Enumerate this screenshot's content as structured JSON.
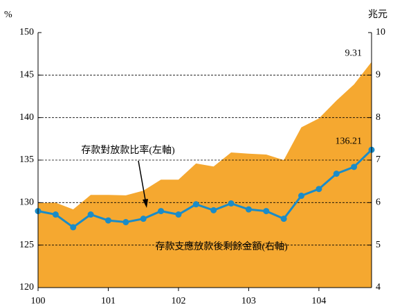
{
  "chart_data": {
    "type": "line",
    "y_label": "%",
    "y2_label": "兆元",
    "categories": [
      "100",
      null,
      null,
      null,
      "101",
      null,
      null,
      null,
      "102",
      null,
      null,
      null,
      "103",
      null,
      null,
      null,
      "104",
      null,
      null,
      null
    ],
    "series": [
      {
        "name": "存款支應放款後剩餘金額(右軸)",
        "type": "area",
        "axis": "y2",
        "color": "#f5a830",
        "values": [
          5.99,
          6.0,
          5.84,
          6.18,
          6.18,
          6.17,
          6.28,
          6.54,
          6.54,
          6.92,
          6.85,
          7.18,
          7.15,
          7.13,
          7.0,
          7.77,
          7.98,
          8.4,
          8.78,
          9.31
        ],
        "value_labels": [
          null,
          null,
          null,
          null,
          null,
          null,
          null,
          null,
          null,
          null,
          null,
          null,
          null,
          null,
          null,
          null,
          null,
          null,
          null,
          "9.31"
        ]
      },
      {
        "name": "存款對放款比率(左軸)",
        "type": "line",
        "axis": "y",
        "color": "#1a8cc8",
        "values": [
          129.0,
          128.6,
          127.1,
          128.6,
          127.9,
          127.7,
          128.1,
          129.0,
          128.6,
          129.8,
          129.1,
          129.9,
          129.2,
          129.0,
          128.1,
          130.8,
          131.6,
          133.4,
          134.2,
          136.21
        ],
        "value_labels": [
          null,
          null,
          null,
          null,
          null,
          null,
          null,
          null,
          null,
          null,
          null,
          null,
          null,
          null,
          null,
          null,
          null,
          null,
          null,
          "136.21"
        ]
      }
    ],
    "ylim": [
      120,
      150
    ],
    "yticks": [
      120,
      125,
      130,
      135,
      140,
      145,
      150
    ],
    "y2lim": [
      4,
      10
    ],
    "y2ticks": [
      4,
      5,
      6,
      7,
      8,
      9,
      10
    ],
    "grid": true
  }
}
